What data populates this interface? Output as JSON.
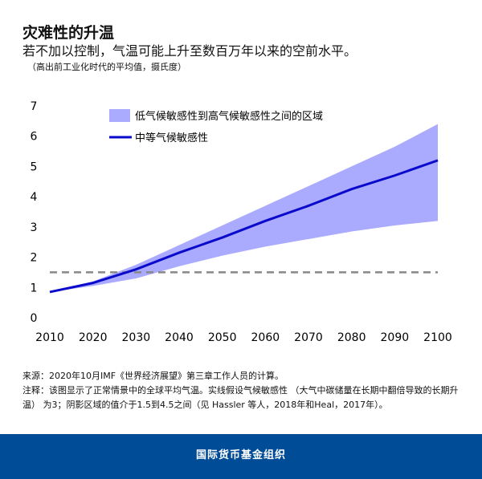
{
  "header": {
    "title": "灾难性的升温",
    "subtitle": "若不加以控制，气温可能上升至数百万年以来的空前水平。",
    "unit": "（高出前工业化时代的平均值，摄氏度）"
  },
  "chart_data": {
    "type": "line",
    "x": [
      2010,
      2020,
      2030,
      2040,
      2050,
      2060,
      2070,
      2080,
      2090,
      2100
    ],
    "series": [
      {
        "name": "中等气候敏感性",
        "values": [
          0.85,
          1.15,
          1.6,
          2.15,
          2.65,
          3.2,
          3.7,
          4.25,
          4.7,
          5.2
        ],
        "color": "#0a0acc"
      },
      {
        "name": "低气候敏感性到高气候敏感性之间的区域",
        "type": "area",
        "upper": [
          0.85,
          1.2,
          1.75,
          2.4,
          3.05,
          3.7,
          4.35,
          5.0,
          5.65,
          6.4
        ],
        "lower": [
          0.85,
          1.05,
          1.3,
          1.7,
          2.05,
          2.35,
          2.6,
          2.85,
          3.05,
          3.2
        ],
        "color": "#aaaaff"
      }
    ],
    "reference_line": {
      "y": 1.5,
      "style": "dashed",
      "color": "#888888"
    },
    "xlim": [
      2010,
      2100
    ],
    "ylim": [
      0,
      7
    ],
    "xticks": [
      2010,
      2020,
      2030,
      2040,
      2050,
      2060,
      2070,
      2080,
      2090,
      2100
    ],
    "yticks": [
      0,
      1,
      2,
      3,
      4,
      5,
      6,
      7
    ],
    "grid": false,
    "legend": "top-left"
  },
  "notes": {
    "source": "来源：2020年10月IMF《世界经济展望》第三章工作人员的计算。",
    "note": "注释：该图显示了正常情景中的全球平均气温。实线假设气候敏感性 （大气中碳储量在长期中翻倍导致的长期升温） 为3；阴影区域的值介于1.5到4.5之间（见 Hassler 等人，2018年和Heal，2017年）。"
  },
  "footer": {
    "org": "国际货币基金组织"
  }
}
